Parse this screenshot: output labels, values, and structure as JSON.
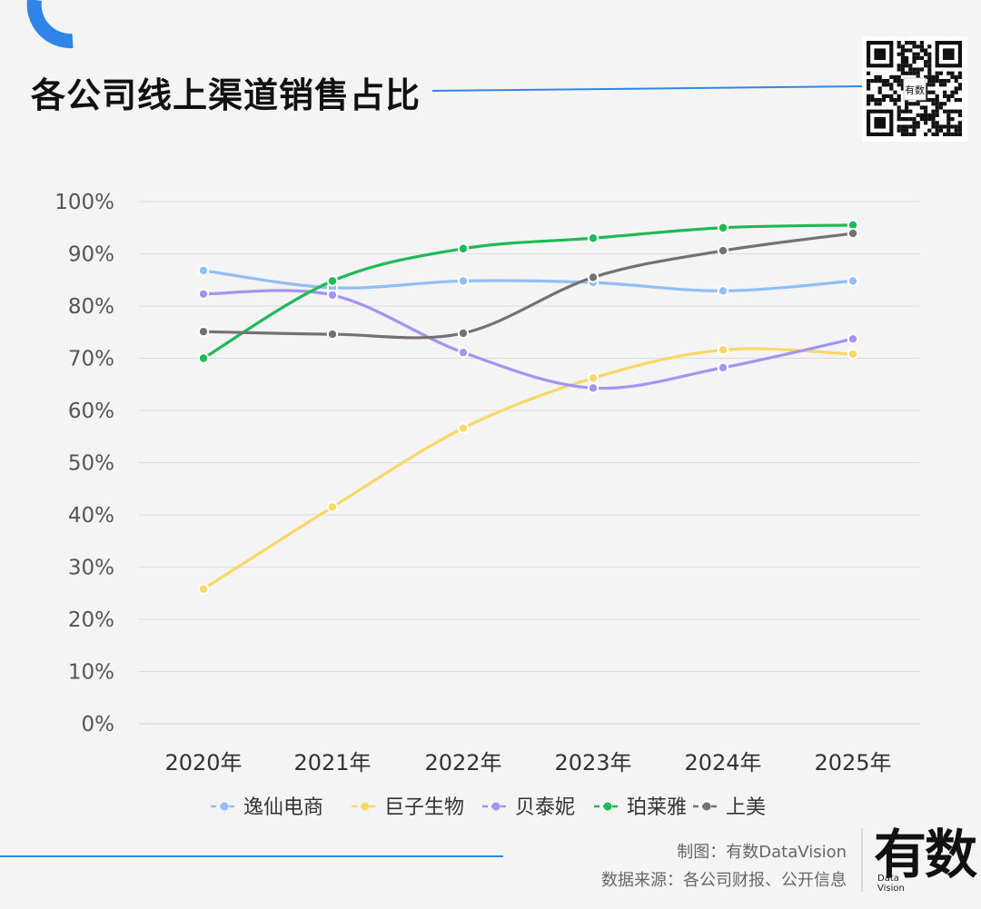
{
  "title": "各公司线上渠道销售占比",
  "credit": {
    "maker": "制图：有数DataVision",
    "source": "数据来源：各公司财报、公开信息"
  },
  "logo": {
    "main": "有数",
    "sub": [
      "Data",
      "Vision"
    ]
  },
  "qr_overlay_text": "有数",
  "colors": {
    "accent_blue": "#2f86e8",
    "background": "#f4f4f4"
  },
  "chart_data": {
    "type": "line",
    "categories": [
      "2020年",
      "2021年",
      "2022年",
      "2023年",
      "2024年",
      "2025年"
    ],
    "ylim": [
      0,
      100
    ],
    "yticks": [
      "0%",
      "10%",
      "20%",
      "30%",
      "40%",
      "50%",
      "60%",
      "70%",
      "80%",
      "90%",
      "100%"
    ],
    "grid": true,
    "legend_position": "bottom",
    "series": [
      {
        "name": "逸仙电商",
        "color": "#8fbff5",
        "values": [
          86.8,
          83.5,
          84.8,
          84.5,
          82.9,
          84.8
        ]
      },
      {
        "name": "巨子生物",
        "color": "#fad867",
        "values": [
          25.8,
          41.5,
          56.6,
          66.2,
          71.6,
          70.8
        ]
      },
      {
        "name": "贝泰妮",
        "color": "#a295f1",
        "values": [
          82.3,
          82.1,
          71.1,
          64.3,
          68.2,
          73.7
        ]
      },
      {
        "name": "珀莱雅",
        "color": "#1dba56",
        "values": [
          70.0,
          84.8,
          91.0,
          93.0,
          95.0,
          95.5
        ]
      },
      {
        "name": "上美",
        "color": "#767071",
        "values": [
          75.1,
          74.6,
          74.8,
          85.5,
          90.6,
          93.9
        ]
      }
    ]
  }
}
